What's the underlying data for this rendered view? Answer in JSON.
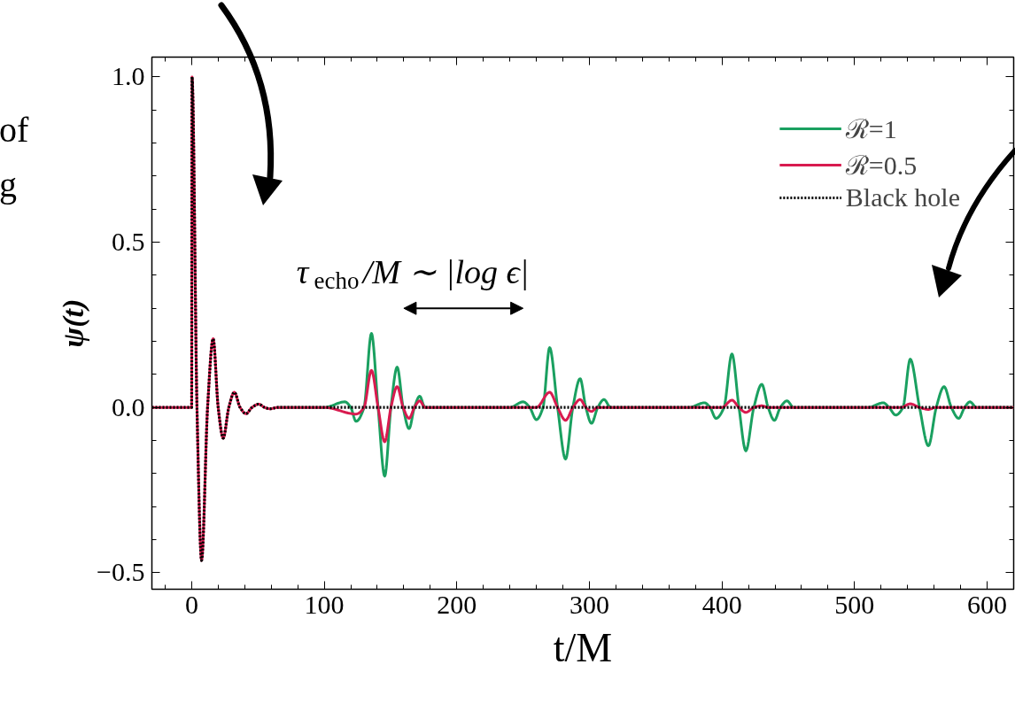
{
  "chart_data": {
    "type": "line",
    "xlabel": "t/M",
    "ylabel": "ψ(t)",
    "xlim": [
      -30,
      620
    ],
    "ylim": [
      -0.55,
      1.06
    ],
    "xticks": [
      0,
      100,
      200,
      300,
      400,
      500,
      600
    ],
    "yticks": [
      {
        "value": -0.5,
        "label": "−0.5"
      },
      {
        "value": 0,
        "label": "0.0"
      },
      {
        "value": 0.5,
        "label": "0.5"
      },
      {
        "value": 1,
        "label": "1.0"
      }
    ],
    "legend": "top right",
    "annotations": [
      "τ$_{echo}$/M ∼ |log ϵ|",
      "of",
      "g"
    ],
    "series": [
      {
        "name": "ℛ=1",
        "color": "#1aa060",
        "line_style": "solid",
        "x": [
          65,
          100,
          115.6,
          120,
          124,
          130,
          135.6,
          140.6,
          145.6,
          150.3,
          155,
          159.5,
          164,
          168,
          172,
          176,
          240,
          250,
          255,
          260,
          265,
          270,
          276,
          282,
          287.5,
          293,
          297.3,
          301.6,
          306.3,
          311,
          316,
          375,
          386.8,
          391,
          395.5,
          401.5,
          407.5,
          412.8,
          418,
          424,
          430,
          434.8,
          439.5,
          444,
          449,
          454,
          510,
          521.7,
          526,
          531,
          536.5,
          542,
          549,
          555.7,
          561.6,
          567.5,
          573,
          578.5,
          583,
          587,
          592,
          620
        ],
        "values": [
          0,
          0,
          0.017,
          0,
          -0.042,
          0,
          0.224,
          0,
          -0.208,
          0,
          0.122,
          0,
          -0.064,
          0,
          0.034,
          0,
          0,
          0.017,
          0,
          -0.037,
          0,
          0.181,
          0,
          -0.156,
          0,
          0.087,
          0,
          -0.048,
          0,
          0.024,
          0,
          0,
          0.014,
          0,
          -0.033,
          0,
          0.162,
          0,
          -0.131,
          0,
          0.07,
          0,
          -0.039,
          0,
          0.02,
          0,
          0,
          0.014,
          0,
          -0.023,
          0,
          0.146,
          0,
          -0.116,
          0,
          0.063,
          0,
          -0.033,
          0,
          0.017,
          0,
          0
        ]
      },
      {
        "name": "ℛ=0.5",
        "color": "#d81b4f",
        "line_style": "solid",
        "x": [
          -30,
          0,
          0.3,
          4,
          7.5,
          12,
          16.2,
          20,
          23.8,
          28,
          32.2,
          36.5,
          41,
          45.5,
          50.6,
          55,
          59,
          65,
          100,
          124,
          130,
          135.6,
          140.6,
          145.6,
          150.3,
          155,
          159.5,
          164,
          168,
          172,
          176,
          260,
          270,
          276,
          282,
          287.5,
          293,
          297.3,
          301.6,
          306,
          400,
          407.5,
          412.8,
          418,
          424,
          430,
          435,
          535,
          542,
          549,
          555.7,
          561,
          620
        ],
        "values": [
          0,
          0,
          1.0,
          0,
          -0.463,
          0,
          0.208,
          0,
          -0.093,
          0,
          0.046,
          0,
          -0.019,
          0,
          0.01,
          0,
          -0.004,
          0,
          0,
          -0.02,
          0,
          0.112,
          0,
          -0.104,
          0,
          0.063,
          0,
          -0.033,
          0,
          0.02,
          0,
          0,
          0.046,
          0,
          -0.039,
          0,
          0.024,
          0,
          -0.012,
          0,
          0,
          0.022,
          0,
          -0.015,
          0,
          0.005,
          0,
          0,
          0.011,
          0,
          -0.006,
          0,
          0
        ]
      },
      {
        "name": "Black hole",
        "color": "#000000",
        "line_style": "dotted",
        "x": [
          -30,
          0,
          0.3,
          4,
          7.5,
          12,
          16.2,
          20,
          23.8,
          28,
          32.2,
          36.5,
          41,
          45.5,
          50.6,
          55,
          59,
          65,
          620
        ],
        "values": [
          0,
          0,
          1.0,
          0,
          -0.463,
          0,
          0.208,
          0,
          -0.093,
          0,
          0.046,
          0,
          -0.019,
          0,
          0.01,
          0,
          -0.004,
          0,
          0
        ]
      }
    ]
  }
}
